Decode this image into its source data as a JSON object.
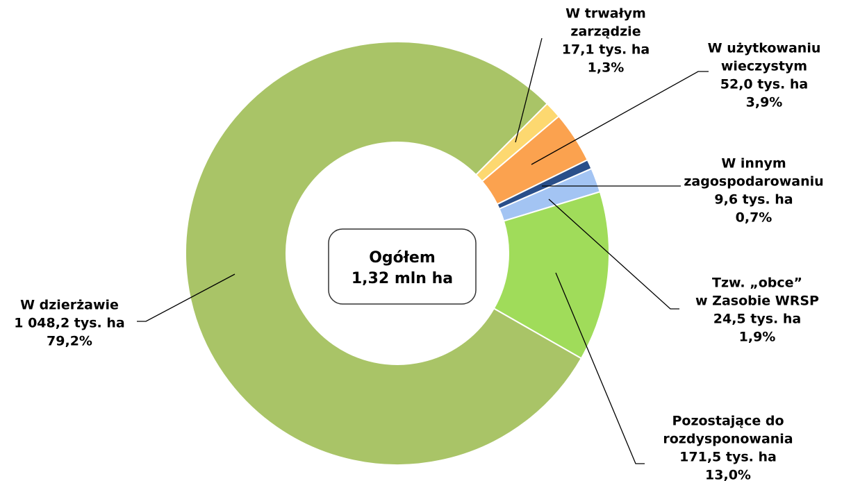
{
  "chart_data": {
    "type": "donut",
    "center_label": [
      "Ogółem",
      "1,32 mln ha"
    ],
    "categories": [
      [
        "W trwałym",
        "zarządzie"
      ],
      [
        "W użytkowaniu",
        "wieczystym"
      ],
      [
        "W innym",
        "zagospodarowaniu"
      ],
      [
        "Tzw. „obce”",
        "w Zasobie WRSP"
      ],
      [
        "Pozostające do",
        "rozdysponowania"
      ],
      [
        "W dzierżawie"
      ]
    ],
    "values": [
      17.1,
      52.0,
      9.6,
      24.5,
      171.5,
      1048.2
    ],
    "value_labels": [
      "17,1 tys. ha",
      "52,0 tys. ha",
      "9,6 tys. ha",
      "24,5 tys. ha",
      "171,5 tys. ha",
      "1 048,2 tys. ha"
    ],
    "percents": [
      1.3,
      3.9,
      0.7,
      1.9,
      13.0,
      79.2
    ],
    "percent_labels": [
      "1,3%",
      "3,9%",
      "0,7%",
      "1,9%",
      "13,0%",
      "79,2%"
    ],
    "colors": [
      "#fdd870",
      "#fba24f",
      "#2a4f8a",
      "#a3c4f3",
      "#a0dc5a",
      "#a9c467"
    ]
  }
}
